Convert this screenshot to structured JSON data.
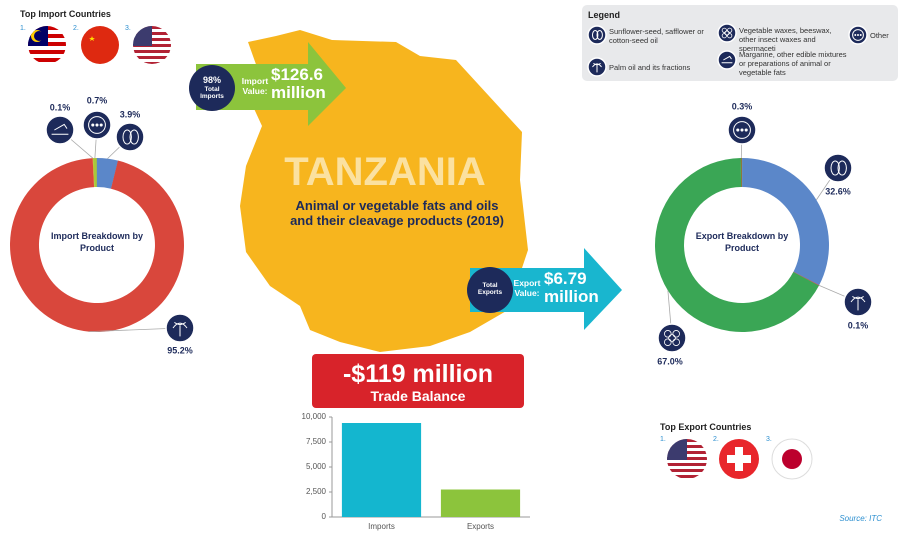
{
  "title": "TANZANIA",
  "subtitle": "Animal or vegetable fats and oils and their cleavage products (2019)",
  "top_import": {
    "title": "Top Import Countries",
    "ranks": [
      "1.",
      "2.",
      "3."
    ]
  },
  "top_export": {
    "title": "Top Export Countries",
    "ranks": [
      "1.",
      "2.",
      "3."
    ]
  },
  "legend": {
    "title": "Legend",
    "items": [
      "Sunflower-seed, safflower or cotton-seed oil",
      "Palm oil and its fractions",
      "Vegetable waxes, beeswax, other insect waxes and spermaceti",
      "Margarine, other edible mixtures or preparations of animal or vegetable fats",
      "Other"
    ]
  },
  "imports": {
    "share": "98%",
    "share_label": "Total Imports",
    "value_label": "Import Value:",
    "value": "$126.6 million"
  },
  "exports": {
    "share_label": "Total Exports",
    "value_label": "Export Value:",
    "value": "$6.79 million"
  },
  "balance": {
    "value": "-$119 million",
    "label": "Trade Balance"
  },
  "source": "Source: ITC",
  "chart_data": [
    {
      "type": "donut",
      "title": "Import Breakdown by Product",
      "values": [
        0.1,
        0.7,
        3.9,
        95.2
      ],
      "value_labels": [
        "0.1%",
        "0.7%",
        "3.9%",
        "95.2%"
      ],
      "colors": [
        "#e8c22c",
        "#a9c83a",
        "#5b87c9",
        "#d9473c"
      ]
    },
    {
      "type": "donut",
      "title": "Export Breakdown by Product",
      "values": [
        0.3,
        32.6,
        0.1,
        67.0
      ],
      "value_labels": [
        "0.3%",
        "32.6%",
        "0.1%",
        "67.0%"
      ],
      "colors": [
        "#8a7a3a",
        "#5b87c9",
        "#d9473c",
        "#3aa655"
      ]
    },
    {
      "type": "bar",
      "categories": [
        "Imports",
        "Exports"
      ],
      "values": [
        9400,
        2750
      ],
      "colors": [
        "#14b6cf",
        "#8cc43c"
      ],
      "ylim": [
        0,
        10000
      ],
      "yticks": [
        0,
        {
          "value": 2500,
          "label": "2,500"
        },
        {
          "value": 5000,
          "label": "5,000"
        },
        {
          "value": 7500,
          "label": "7,500"
        },
        {
          "value": 10000,
          "label": "10,000"
        }
      ],
      "grid": false
    }
  ]
}
